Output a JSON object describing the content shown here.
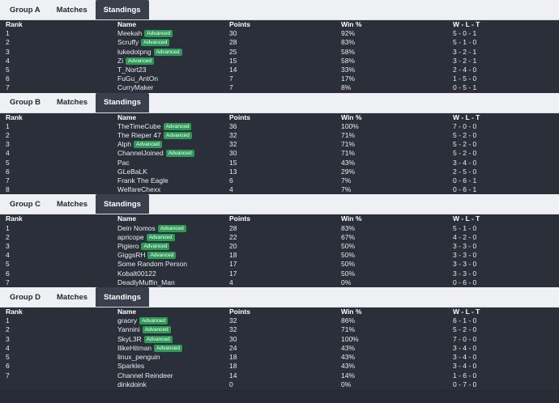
{
  "tabs": [
    "Matches",
    "Standings"
  ],
  "columns": [
    "Rank",
    "Name",
    "Points",
    "Win %",
    "W - L - T"
  ],
  "advanced_label": "Advanced",
  "groups": [
    {
      "name": "Group A",
      "rows": [
        {
          "rank": "1",
          "name": "Meekah",
          "advanced": true,
          "points": "30",
          "win": "92%",
          "wlt": "5 - 0 - 1"
        },
        {
          "rank": "2",
          "name": "Scruffy",
          "advanced": true,
          "points": "28",
          "win": "83%",
          "wlt": "5 - 1 - 0"
        },
        {
          "rank": "3",
          "name": "lukedotpng",
          "advanced": true,
          "points": "25",
          "win": "58%",
          "wlt": "3 - 2 - 1"
        },
        {
          "rank": "4",
          "name": "Zi",
          "advanced": true,
          "points": "15",
          "win": "58%",
          "wlt": "3 - 2 - 1"
        },
        {
          "rank": "5",
          "name": "T_Nort23",
          "advanced": false,
          "points": "14",
          "win": "33%",
          "wlt": "2 - 4 - 0"
        },
        {
          "rank": "6",
          "name": "FuGu_AntOn",
          "advanced": false,
          "points": "7",
          "win": "17%",
          "wlt": "1 - 5 - 0"
        },
        {
          "rank": "7",
          "name": "CurryMaker",
          "advanced": false,
          "points": "7",
          "win": "8%",
          "wlt": "0 - 5 - 1"
        }
      ]
    },
    {
      "name": "Group B",
      "rows": [
        {
          "rank": "1",
          "name": "TheTimeCube",
          "advanced": true,
          "points": "36",
          "win": "100%",
          "wlt": "7 - 0 - 0"
        },
        {
          "rank": "2",
          "name": "The Rieper 47",
          "advanced": true,
          "points": "32",
          "win": "71%",
          "wlt": "5 - 2 - 0"
        },
        {
          "rank": "3",
          "name": "Alph",
          "advanced": true,
          "points": "32",
          "win": "71%",
          "wlt": "5 - 2 - 0"
        },
        {
          "rank": "4",
          "name": "ChannelJoined",
          "advanced": true,
          "points": "30",
          "win": "71%",
          "wlt": "5 - 2 - 0"
        },
        {
          "rank": "5",
          "name": "Pac",
          "advanced": false,
          "points": "15",
          "win": "43%",
          "wlt": "3 - 4 - 0"
        },
        {
          "rank": "6",
          "name": "GLeBaLK",
          "advanced": false,
          "points": "13",
          "win": "29%",
          "wlt": "2 - 5 - 0"
        },
        {
          "rank": "7",
          "name": "Frank The Eagle",
          "advanced": false,
          "points": "6",
          "win": "7%",
          "wlt": "0 - 6 - 1"
        },
        {
          "rank": "8",
          "name": "WelfareChexx",
          "advanced": false,
          "points": "4",
          "win": "7%",
          "wlt": "0 - 6 - 1"
        }
      ]
    },
    {
      "name": "Group C",
      "rows": [
        {
          "rank": "1",
          "name": "Dein Nomos",
          "advanced": true,
          "points": "28",
          "win": "83%",
          "wlt": "5 - 1 - 0"
        },
        {
          "rank": "2",
          "name": "apricope",
          "advanced": true,
          "points": "22",
          "win": "67%",
          "wlt": "4 - 2 - 0"
        },
        {
          "rank": "3",
          "name": "Pigiero",
          "advanced": true,
          "points": "20",
          "win": "50%",
          "wlt": "3 - 3 - 0"
        },
        {
          "rank": "4",
          "name": "GiggsRH",
          "advanced": true,
          "points": "18",
          "win": "50%",
          "wlt": "3 - 3 - 0"
        },
        {
          "rank": "5",
          "name": "Some Random Person",
          "advanced": false,
          "points": "17",
          "win": "50%",
          "wlt": "3 - 3 - 0"
        },
        {
          "rank": "6",
          "name": "Kobalt00122",
          "advanced": false,
          "points": "17",
          "win": "50%",
          "wlt": "3 - 3 - 0"
        },
        {
          "rank": "7",
          "name": "DeadlyMuffin_Man",
          "advanced": false,
          "points": "4",
          "win": "0%",
          "wlt": "0 - 6 - 0"
        }
      ]
    },
    {
      "name": "Group D",
      "rows": [
        {
          "rank": "1",
          "name": "graory",
          "advanced": true,
          "points": "32",
          "win": "86%",
          "wlt": "6 - 1 - 0"
        },
        {
          "rank": "2",
          "name": "Yannini",
          "advanced": true,
          "points": "32",
          "win": "71%",
          "wlt": "5 - 2 - 0"
        },
        {
          "rank": "3",
          "name": "SkyL3R",
          "advanced": true,
          "points": "30",
          "win": "100%",
          "wlt": "7 - 0 - 0"
        },
        {
          "rank": "4",
          "name": "IlikeHitman",
          "advanced": true,
          "points": "24",
          "win": "43%",
          "wlt": "3 - 4 - 0"
        },
        {
          "rank": "5",
          "name": "linux_penguin",
          "advanced": false,
          "points": "18",
          "win": "43%",
          "wlt": "3 - 4 - 0"
        },
        {
          "rank": "6",
          "name": "Sparkles",
          "advanced": false,
          "points": "18",
          "win": "43%",
          "wlt": "3 - 4 - 0"
        },
        {
          "rank": "7",
          "name": "Channel Reindeer",
          "advanced": false,
          "points": "14",
          "win": "14%",
          "wlt": "1 - 6 - 0"
        },
        {
          "rank": "",
          "name": "dinkdoink",
          "advanced": false,
          "points": "0",
          "win": "0%",
          "wlt": "0 - 7 - 0"
        }
      ]
    }
  ]
}
